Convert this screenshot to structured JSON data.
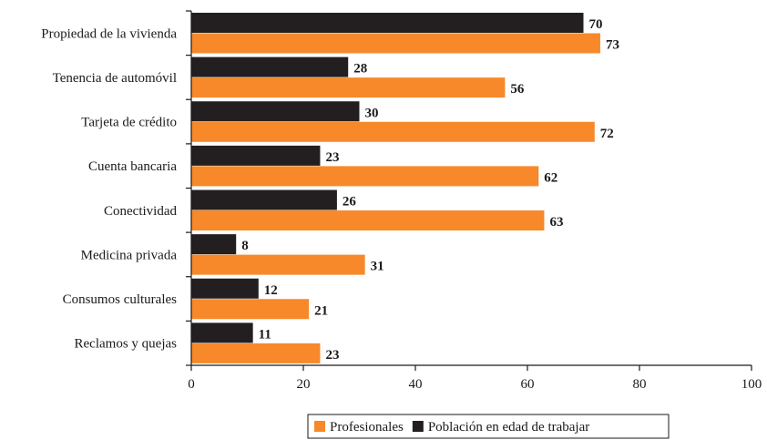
{
  "chart_data": {
    "type": "bar",
    "orientation": "horizontal",
    "categories": [
      "Propiedad de la vivienda",
      "Tenencia de automóvil",
      "Tarjeta de crédito",
      "Cuenta bancaria",
      "Conectividad",
      "Medicina privada",
      "Consumos culturales",
      "Reclamos y quejas"
    ],
    "series": [
      {
        "name": "Población en edad de trabajar",
        "color": "#231f20",
        "values": [
          70,
          28,
          30,
          23,
          26,
          8,
          12,
          11
        ]
      },
      {
        "name": "Profesionales",
        "color": "#f7892a",
        "values": [
          73,
          56,
          72,
          62,
          63,
          31,
          21,
          23
        ]
      }
    ],
    "xlim": [
      0,
      100
    ],
    "xticks": [
      0,
      20,
      40,
      60,
      80,
      100
    ],
    "legend_order": [
      "Profesionales",
      "Población en edad de trabajar"
    ],
    "legend_position": "bottom",
    "grid": false
  }
}
